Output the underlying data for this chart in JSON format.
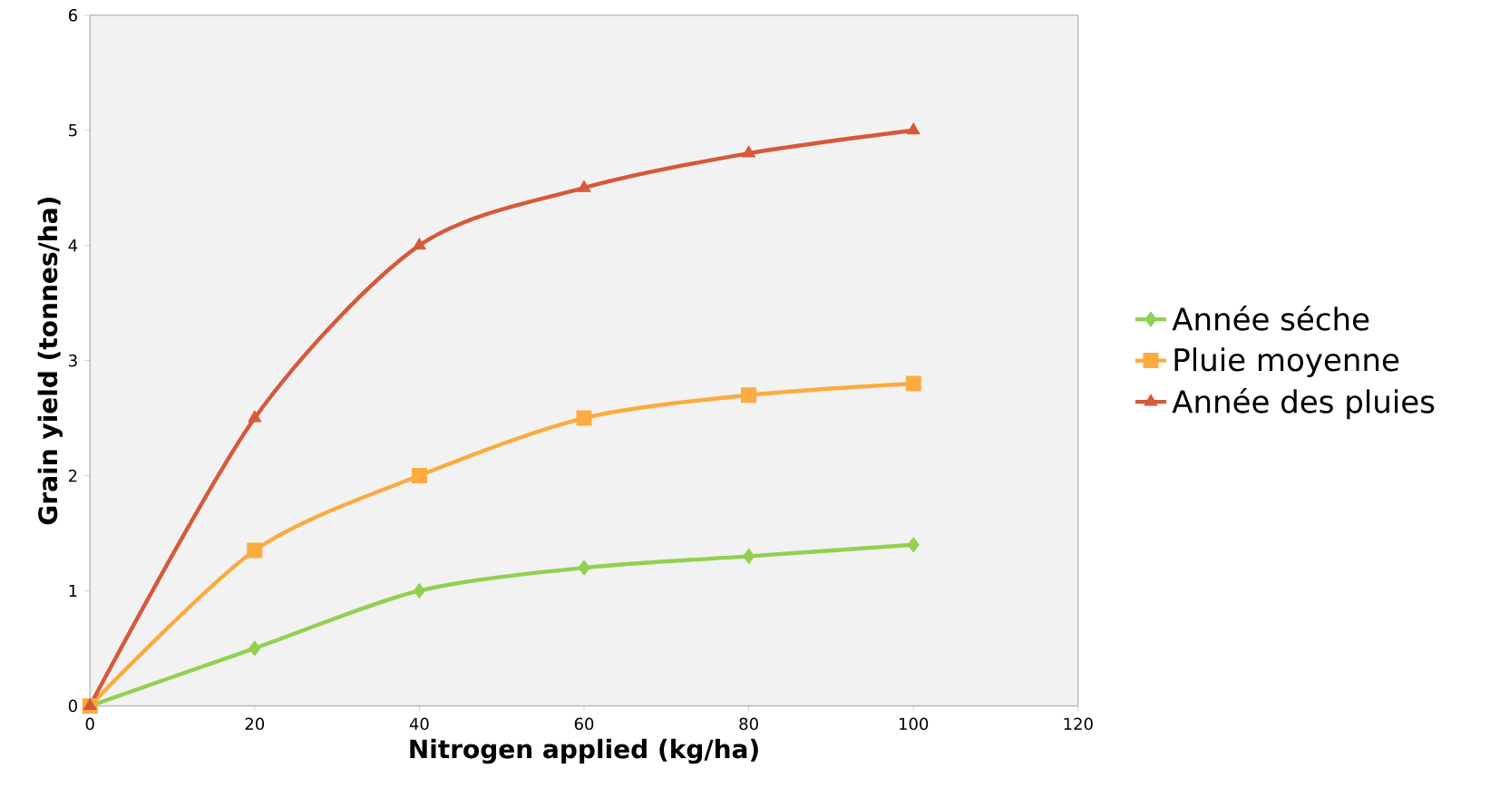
{
  "chart_data": {
    "type": "line",
    "xlabel": "Nitrogen applied (kg/ha)",
    "ylabel": "Grain yield (tonnes/ha)",
    "x": [
      0,
      20,
      40,
      60,
      80,
      100
    ],
    "series": [
      {
        "name": "Année séche",
        "color": "#92d050",
        "marker": "diamond",
        "values": [
          0,
          0.5,
          1,
          1.2,
          1.3,
          1.4
        ]
      },
      {
        "name": "Pluie moyenne",
        "color": "#fbab3f",
        "marker": "square",
        "values": [
          0,
          1.35,
          2,
          2.5,
          2.7,
          2.8
        ]
      },
      {
        "name": "Année des pluies",
        "color": "#d6593c",
        "marker": "triangle",
        "values": [
          0,
          2.5,
          4,
          4.5,
          4.8,
          5.0
        ]
      }
    ],
    "xlim": [
      0,
      120
    ],
    "xticks": [
      0,
      20,
      40,
      60,
      80,
      100,
      120
    ],
    "ylim": [
      0,
      6
    ],
    "yticks": [
      0,
      1,
      2,
      3,
      4,
      5,
      6
    ],
    "grid": false,
    "legend": "right",
    "line_style": "solid"
  }
}
